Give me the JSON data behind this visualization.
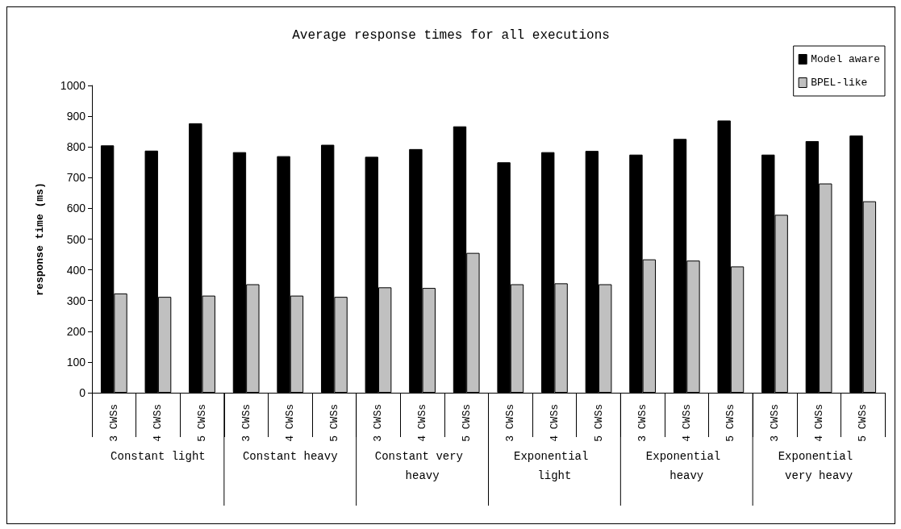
{
  "chart_data": {
    "type": "bar",
    "title": "Average response times for all executions",
    "ylabel": "response time (ms)",
    "categories": [
      "3 CWSs",
      "4 CWSs",
      "5 CWSs",
      "3 CWSs",
      "4 CWSs",
      "5 CWSs",
      "3 CWSs",
      "4 CWSs",
      "5 CWSs",
      "3 CWSs",
      "4 CWSs",
      "5 CWSs",
      "3 CWSs",
      "4 CWSs",
      "5 CWSs",
      "3 CWSs",
      "4 CWSs",
      "5 CWSs"
    ],
    "annotations": [
      "Constant light",
      "Constant heavy",
      "Constant very heavy",
      "Exponential light",
      "Exponential heavy",
      "Exponential very heavy"
    ],
    "series": [
      {
        "name": "Model aware",
        "color": "#000000",
        "values": [
          805,
          788,
          877,
          783,
          770,
          807,
          768,
          793,
          867,
          750,
          783,
          787,
          775,
          826,
          886,
          775,
          819,
          837
        ]
      },
      {
        "name": "BPEL-like",
        "color": "#c0c0c0",
        "values": [
          323,
          312,
          316,
          353,
          316,
          312,
          343,
          341,
          455,
          353,
          356,
          353,
          434,
          430,
          411,
          579,
          681,
          623
        ]
      }
    ],
    "ylim": [
      0,
      1000
    ],
    "yticks": [
      0,
      100,
      200,
      300,
      400,
      500,
      600,
      700,
      800,
      900,
      1000
    ],
    "grid": false,
    "legend": "top right"
  }
}
